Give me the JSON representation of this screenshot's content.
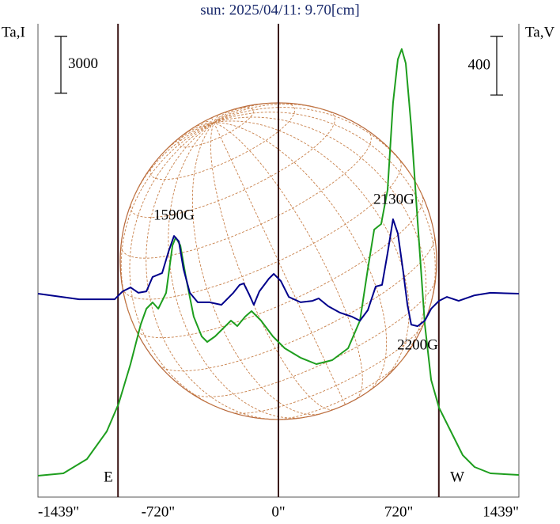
{
  "chart_data": {
    "type": "line",
    "title": "sun: 2025/04/11: 9.70[cm]",
    "y_label": "Ta,I",
    "y2_label": "Ta,V",
    "xlim": [
      -1439,
      1439
    ],
    "xticks": [
      {
        "value": -1439,
        "label": "-1439\""
      },
      {
        "value": -720,
        "label": "-720\""
      },
      {
        "value": 0,
        "label": "0\""
      },
      {
        "value": 720,
        "label": "720\""
      },
      {
        "value": 1439,
        "label": "1439\""
      }
    ],
    "ylim": [
      0,
      25000
    ],
    "y2lim": [
      -1380,
      1850
    ],
    "y_scale": 3000,
    "y2_scale": 400,
    "vlines": [
      -960,
      0,
      960
    ],
    "series": [
      {
        "name": "I",
        "color": "#1e9e1e",
        "axis": "y",
        "x": [
          -1439,
          -1287,
          -1146,
          -1027,
          -956,
          -885,
          -824,
          -790,
          -753,
          -719,
          -672,
          -634,
          -615,
          -587,
          -554,
          -507,
          -459,
          -426,
          -379,
          -317,
          -284,
          -246,
          -199,
          -161,
          -104,
          -33,
          38,
          133,
          227,
          322,
          417,
          488,
          535,
          573,
          615,
          653,
          686,
          715,
          738,
          762,
          795,
          833,
          876,
          914,
          961,
          1032,
          1103,
          1174,
          1269,
          1439
        ],
        "values": [
          1129,
          1254,
          2007,
          3470,
          4933,
          7023,
          9114,
          9950,
          10284,
          9950,
          10786,
          13294,
          13712,
          13294,
          11622,
          9532,
          8486,
          8194,
          8486,
          9030,
          9323,
          9030,
          9532,
          9824,
          9323,
          8486,
          7860,
          7358,
          7023,
          7232,
          7860,
          9323,
          12040,
          14130,
          14423,
          16221,
          20819,
          23119,
          23662,
          22910,
          19565,
          14548,
          9114,
          6187,
          4724,
          3470,
          2216,
          1589,
          1254,
          1171
        ]
      },
      {
        "name": "V",
        "color": "#00008b",
        "axis": "y2",
        "x": [
          -1439,
          -1193,
          -980,
          -932,
          -885,
          -838,
          -790,
          -753,
          -696,
          -658,
          -625,
          -596,
          -568,
          -530,
          -483,
          -412,
          -341,
          -270,
          -232,
          -208,
          -175,
          -147,
          -114,
          -57,
          -28,
          14,
          62,
          133,
          204,
          241,
          298,
          369,
          440,
          488,
          535,
          582,
          620,
          653,
          686,
          715,
          748,
          772,
          795,
          833,
          876,
          914,
          961,
          1008,
          1079,
          1174,
          1269,
          1439
        ],
        "values": [
          8,
          -30,
          -30,
          24,
          51,
          14,
          24,
          122,
          149,
          294,
          402,
          365,
          176,
          14,
          -51,
          -51,
          -68,
          14,
          68,
          78,
          3,
          -68,
          24,
          111,
          143,
          95,
          -14,
          -51,
          -41,
          -24,
          -78,
          -122,
          -149,
          -176,
          -105,
          57,
          68,
          284,
          516,
          419,
          149,
          -68,
          -203,
          -214,
          -176,
          -95,
          -41,
          -14,
          -41,
          -3,
          14,
          8
        ]
      }
    ],
    "annotations": [
      {
        "text": "1590G",
        "x": -625,
        "y": 14841
      },
      {
        "text": "2130G",
        "x": 691,
        "y": 15677
      },
      {
        "text": "2200G",
        "x": 833,
        "y": 7985
      },
      {
        "text": "E",
        "x": -1018,
        "y": 1003
      },
      {
        "text": "W",
        "x": 1070,
        "y": 1003
      }
    ]
  }
}
